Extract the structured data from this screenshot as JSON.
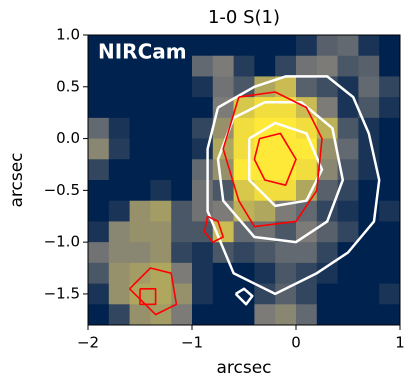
{
  "chart_data": {
    "type": "image",
    "title": "1-0 S(1)",
    "xlabel": "arcsec",
    "ylabel": "arcsec",
    "annotation": "NIRCam",
    "xlim": [
      -2,
      1
    ],
    "ylim": [
      -1.8,
      1.0
    ],
    "xticks": [
      {
        "value": -2,
        "label": "−2"
      },
      {
        "value": -1,
        "label": "−1"
      },
      0,
      1
    ],
    "yticks": [
      {
        "value": 1.0,
        "label": "1.0"
      },
      {
        "value": 0.5,
        "label": "0.5"
      },
      {
        "value": 0.0,
        "label": "0.0"
      },
      {
        "value": -0.5,
        "label": "−0.5"
      },
      {
        "value": -1.0,
        "label": "−1.0"
      },
      {
        "value": -1.5,
        "label": "−1.5"
      }
    ],
    "colormap": [
      "#00224e",
      "#7c7b78",
      "#fee838"
    ],
    "image": [
      [
        0,
        0,
        0,
        0,
        0,
        0,
        0,
        0,
        0,
        0,
        0.1,
        0.35,
        0.4,
        0.1,
        0
      ],
      [
        0,
        0,
        0,
        0,
        0,
        0.4,
        0.5,
        0.15,
        0,
        0.2,
        0.45,
        0.5,
        0.3,
        0.35,
        0
      ],
      [
        0,
        0,
        0,
        0,
        0,
        0.1,
        0.45,
        0.3,
        0.7,
        0.8,
        0.35,
        0.25,
        0.1,
        0.4,
        0.2
      ],
      [
        0,
        0,
        0,
        0,
        0,
        0,
        0.5,
        0.85,
        0.95,
        0.95,
        0.8,
        0.5,
        0.1,
        0.3,
        0.1
      ],
      [
        0.4,
        0.1,
        0,
        0,
        0,
        0.2,
        0.6,
        0.95,
        1,
        1,
        0.95,
        0.75,
        0.3,
        0.1,
        0
      ],
      [
        0.55,
        0.15,
        0,
        0,
        0,
        0.1,
        0.7,
        0.95,
        1,
        1,
        1,
        0.6,
        0.4,
        0.1,
        0
      ],
      [
        0.2,
        0,
        0,
        0,
        0,
        0.4,
        0.6,
        1,
        1,
        1,
        0.95,
        0.55,
        0.3,
        0.1,
        0
      ],
      [
        0,
        0,
        0,
        0.1,
        0,
        0.45,
        0.3,
        0.85,
        0.95,
        0.95,
        0.7,
        0.35,
        0.2,
        0,
        0
      ],
      [
        0,
        0.1,
        0.6,
        0.65,
        0.3,
        0.45,
        0.5,
        0.75,
        0.7,
        0.5,
        0.4,
        0.2,
        0.1,
        0,
        0.1
      ],
      [
        0.1,
        0.55,
        0.6,
        0.6,
        0.3,
        0.3,
        0.8,
        0.4,
        0.45,
        0.3,
        0.5,
        0.35,
        0.2,
        0,
        0
      ],
      [
        0.45,
        0.55,
        0.55,
        0.6,
        0.2,
        0.1,
        0.3,
        0.2,
        0.3,
        0.4,
        0.4,
        0.2,
        0,
        0,
        0
      ],
      [
        0.3,
        0.6,
        0.65,
        0.7,
        0.5,
        0.1,
        0,
        0,
        0.1,
        0.3,
        0.2,
        0.1,
        0,
        0,
        0
      ],
      [
        0.1,
        0.6,
        0.7,
        0.7,
        0.6,
        0.1,
        0,
        0,
        0.2,
        0.35,
        0.2,
        0,
        0,
        0,
        0.1
      ],
      [
        0,
        0.2,
        0.6,
        0.65,
        0.5,
        0,
        0,
        0,
        0.5,
        0.55,
        0.4,
        0,
        0,
        0,
        0
      ]
    ],
    "contours": [
      {
        "color": "#ffffff",
        "x": [
          -0.75,
          -0.4,
          -0.1,
          0.3,
          0.55,
          0.7,
          0.8,
          0.75,
          0.5,
          0.2,
          -0.2,
          -0.6,
          -0.85,
          -0.85,
          -0.75
        ],
        "y": [
          0.3,
          0.5,
          0.6,
          0.6,
          0.4,
          0.05,
          -0.4,
          -0.8,
          -1.1,
          -1.3,
          -1.5,
          -1.3,
          -0.7,
          -0.1,
          0.3
        ]
      },
      {
        "color": "#ffffff",
        "x": [
          -0.6,
          -0.3,
          0.05,
          0.35,
          0.45,
          0.3,
          0,
          -0.4,
          -0.7,
          -0.75,
          -0.6
        ],
        "y": [
          0.2,
          0.35,
          0.35,
          0.1,
          -0.4,
          -0.8,
          -1.0,
          -0.95,
          -0.6,
          -0.2,
          0.2
        ]
      },
      {
        "color": "#ffffff",
        "x": [
          -0.45,
          -0.2,
          0.1,
          0.25,
          0.1,
          -0.2,
          -0.45,
          -0.45
        ],
        "y": [
          0.0,
          0.15,
          0.05,
          -0.3,
          -0.6,
          -0.65,
          -0.4,
          0.0
        ]
      },
      {
        "color": "#ffffff",
        "x": [
          -0.58,
          -0.5,
          -0.42,
          -0.48,
          -0.58
        ],
        "y": [
          -1.5,
          -1.45,
          -1.52,
          -1.6,
          -1.5
        ]
      },
      {
        "color": "#ff0000",
        "x": [
          -0.55,
          -0.2,
          0.1,
          0.25,
          0.2,
          0.0,
          -0.4,
          -0.55,
          -0.7,
          -0.55
        ],
        "y": [
          0.4,
          0.45,
          0.3,
          0.0,
          -0.5,
          -0.8,
          -0.85,
          -0.6,
          -0.1,
          0.4
        ]
      },
      {
        "color": "#ff0000",
        "x": [
          -0.35,
          -0.15,
          0.0,
          -0.1,
          -0.3,
          -0.4,
          -0.35
        ],
        "y": [
          0.0,
          0.05,
          -0.2,
          -0.45,
          -0.4,
          -0.2,
          0.0
        ]
      },
      {
        "color": "#ff0000",
        "x": [
          -0.85,
          -0.75,
          -0.7,
          -0.8,
          -0.88,
          -0.85
        ],
        "y": [
          -0.75,
          -0.8,
          -0.95,
          -1.0,
          -0.9,
          -0.75
        ]
      },
      {
        "color": "#ff0000",
        "x": [
          -1.6,
          -1.4,
          -1.2,
          -1.15,
          -1.35,
          -1.6
        ],
        "y": [
          -1.45,
          -1.25,
          -1.3,
          -1.6,
          -1.7,
          -1.45
        ]
      },
      {
        "color": "#ff0000",
        "x": [
          -1.5,
          -1.35,
          -1.35,
          -1.5,
          -1.5
        ],
        "y": [
          -1.45,
          -1.45,
          -1.6,
          -1.6,
          -1.45
        ]
      }
    ]
  }
}
